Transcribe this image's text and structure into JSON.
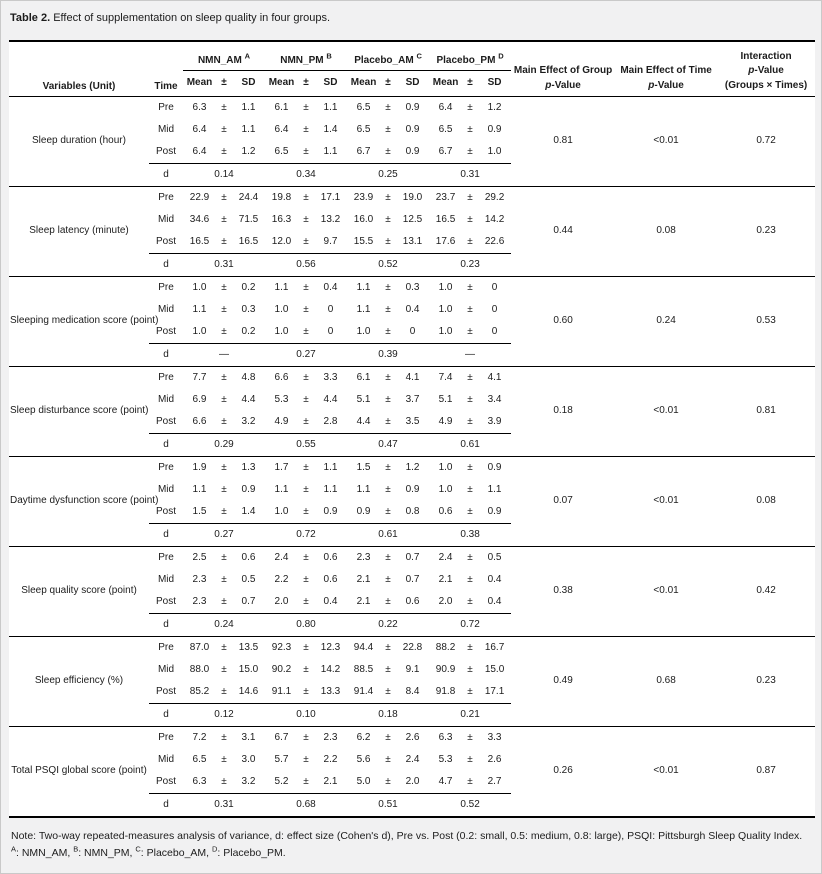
{
  "title": {
    "label": "Table 2.",
    "caption": " Effect of supplementation on sleep quality in four groups."
  },
  "header": {
    "variables": "Variables (Unit)",
    "time": "Time",
    "groups": [
      {
        "name": "NMN_AM",
        "sup": "A"
      },
      {
        "name": "NMN_PM",
        "sup": "B"
      },
      {
        "name": "Placebo_AM",
        "sup": "C"
      },
      {
        "name": "Placebo_PM",
        "sup": "D"
      }
    ],
    "sub": {
      "mean": "Mean",
      "pm": "±",
      "sd": "SD"
    },
    "p_group_title": "Main Effect of Group",
    "p_time_title": "Main Effect of Time",
    "interaction_title": "Interaction",
    "p_char": "p",
    "p_suffix": "-Value",
    "interaction_scope": "(Groups × Times)",
    "d_label": "d"
  },
  "rows": [
    {
      "variable": "Sleep duration (hour)",
      "measurements": [
        {
          "time": "Pre",
          "values": [
            [
              "6.3",
              "1.1"
            ],
            [
              "6.1",
              "1.1"
            ],
            [
              "6.5",
              "0.9"
            ],
            [
              "6.4",
              "1.2"
            ]
          ]
        },
        {
          "time": "Mid",
          "values": [
            [
              "6.4",
              "1.1"
            ],
            [
              "6.4",
              "1.4"
            ],
            [
              "6.5",
              "0.9"
            ],
            [
              "6.5",
              "0.9"
            ]
          ]
        },
        {
          "time": "Post",
          "values": [
            [
              "6.4",
              "1.2"
            ],
            [
              "6.5",
              "1.1"
            ],
            [
              "6.7",
              "0.9"
            ],
            [
              "6.7",
              "1.0"
            ]
          ]
        }
      ],
      "d": [
        "0.14",
        "0.34",
        "0.25",
        "0.31"
      ],
      "p_group": "0.81",
      "p_time": "<0.01",
      "p_interaction": "0.72"
    },
    {
      "variable": "Sleep latency (minute)",
      "measurements": [
        {
          "time": "Pre",
          "values": [
            [
              "22.9",
              "24.4"
            ],
            [
              "19.8",
              "17.1"
            ],
            [
              "23.9",
              "19.0"
            ],
            [
              "23.7",
              "29.2"
            ]
          ]
        },
        {
          "time": "Mid",
          "values": [
            [
              "34.6",
              "71.5"
            ],
            [
              "16.3",
              "13.2"
            ],
            [
              "16.0",
              "12.5"
            ],
            [
              "16.5",
              "14.2"
            ]
          ]
        },
        {
          "time": "Post",
          "values": [
            [
              "16.5",
              "16.5"
            ],
            [
              "12.0",
              "9.7"
            ],
            [
              "15.5",
              "13.1"
            ],
            [
              "17.6",
              "22.6"
            ]
          ]
        }
      ],
      "d": [
        "0.31",
        "0.56",
        "0.52",
        "0.23"
      ],
      "p_group": "0.44",
      "p_time": "0.08",
      "p_interaction": "0.23"
    },
    {
      "variable": "Sleeping medication score (point)",
      "measurements": [
        {
          "time": "Pre",
          "values": [
            [
              "1.0",
              "0.2"
            ],
            [
              "1.1",
              "0.4"
            ],
            [
              "1.1",
              "0.3"
            ],
            [
              "1.0",
              "0"
            ]
          ]
        },
        {
          "time": "Mid",
          "values": [
            [
              "1.1",
              "0.3"
            ],
            [
              "1.0",
              "0"
            ],
            [
              "1.1",
              "0.4"
            ],
            [
              "1.0",
              "0"
            ]
          ]
        },
        {
          "time": "Post",
          "values": [
            [
              "1.0",
              "0.2"
            ],
            [
              "1.0",
              "0"
            ],
            [
              "1.0",
              "0"
            ],
            [
              "1.0",
              "0"
            ]
          ]
        }
      ],
      "d": [
        "—",
        "0.27",
        "0.39",
        "—"
      ],
      "p_group": "0.60",
      "p_time": "0.24",
      "p_interaction": "0.53"
    },
    {
      "variable": "Sleep disturbance score (point)",
      "measurements": [
        {
          "time": "Pre",
          "values": [
            [
              "7.7",
              "4.8"
            ],
            [
              "6.6",
              "3.3"
            ],
            [
              "6.1",
              "4.1"
            ],
            [
              "7.4",
              "4.1"
            ]
          ]
        },
        {
          "time": "Mid",
          "values": [
            [
              "6.9",
              "4.4"
            ],
            [
              "5.3",
              "4.4"
            ],
            [
              "5.1",
              "3.7"
            ],
            [
              "5.1",
              "3.4"
            ]
          ]
        },
        {
          "time": "Post",
          "values": [
            [
              "6.6",
              "3.2"
            ],
            [
              "4.9",
              "2.8"
            ],
            [
              "4.4",
              "3.5"
            ],
            [
              "4.9",
              "3.9"
            ]
          ]
        }
      ],
      "d": [
        "0.29",
        "0.55",
        "0.47",
        "0.61"
      ],
      "p_group": "0.18",
      "p_time": "<0.01",
      "p_interaction": "0.81"
    },
    {
      "variable": "Daytime dysfunction score (point)",
      "measurements": [
        {
          "time": "Pre",
          "values": [
            [
              "1.9",
              "1.3"
            ],
            [
              "1.7",
              "1.1"
            ],
            [
              "1.5",
              "1.2"
            ],
            [
              "1.0",
              "0.9"
            ]
          ]
        },
        {
          "time": "Mid",
          "values": [
            [
              "1.1",
              "0.9"
            ],
            [
              "1.1",
              "1.1"
            ],
            [
              "1.1",
              "0.9"
            ],
            [
              "1.0",
              "1.1"
            ]
          ]
        },
        {
          "time": "Post",
          "values": [
            [
              "1.5",
              "1.4"
            ],
            [
              "1.0",
              "0.9"
            ],
            [
              "0.9",
              "0.8"
            ],
            [
              "0.6",
              "0.9"
            ]
          ]
        }
      ],
      "d": [
        "0.27",
        "0.72",
        "0.61",
        "0.38"
      ],
      "p_group": "0.07",
      "p_time": "<0.01",
      "p_interaction": "0.08"
    },
    {
      "variable": "Sleep quality score (point)",
      "measurements": [
        {
          "time": "Pre",
          "values": [
            [
              "2.5",
              "0.6"
            ],
            [
              "2.4",
              "0.6"
            ],
            [
              "2.3",
              "0.7"
            ],
            [
              "2.4",
              "0.5"
            ]
          ]
        },
        {
          "time": "Mid",
          "values": [
            [
              "2.3",
              "0.5"
            ],
            [
              "2.2",
              "0.6"
            ],
            [
              "2.1",
              "0.7"
            ],
            [
              "2.1",
              "0.4"
            ]
          ]
        },
        {
          "time": "Post",
          "values": [
            [
              "2.3",
              "0.7"
            ],
            [
              "2.0",
              "0.4"
            ],
            [
              "2.1",
              "0.6"
            ],
            [
              "2.0",
              "0.4"
            ]
          ]
        }
      ],
      "d": [
        "0.24",
        "0.80",
        "0.22",
        "0.72"
      ],
      "p_group": "0.38",
      "p_time": "<0.01",
      "p_interaction": "0.42"
    },
    {
      "variable": "Sleep efficiency (%)",
      "measurements": [
        {
          "time": "Pre",
          "values": [
            [
              "87.0",
              "13.5"
            ],
            [
              "92.3",
              "12.3"
            ],
            [
              "94.4",
              "22.8"
            ],
            [
              "88.2",
              "16.7"
            ]
          ]
        },
        {
          "time": "Mid",
          "values": [
            [
              "88.0",
              "15.0"
            ],
            [
              "90.2",
              "14.2"
            ],
            [
              "88.5",
              "9.1"
            ],
            [
              "90.9",
              "15.0"
            ]
          ]
        },
        {
          "time": "Post",
          "values": [
            [
              "85.2",
              "14.6"
            ],
            [
              "91.1",
              "13.3"
            ],
            [
              "91.4",
              "8.4"
            ],
            [
              "91.8",
              "17.1"
            ]
          ]
        }
      ],
      "d": [
        "0.12",
        "0.10",
        "0.18",
        "0.21"
      ],
      "p_group": "0.49",
      "p_time": "0.68",
      "p_interaction": "0.23"
    },
    {
      "variable": "Total PSQI global score (point)",
      "measurements": [
        {
          "time": "Pre",
          "values": [
            [
              "7.2",
              "3.1"
            ],
            [
              "6.7",
              "2.3"
            ],
            [
              "6.2",
              "2.6"
            ],
            [
              "6.3",
              "3.3"
            ]
          ]
        },
        {
          "time": "Mid",
          "values": [
            [
              "6.5",
              "3.0"
            ],
            [
              "5.7",
              "2.2"
            ],
            [
              "5.6",
              "2.4"
            ],
            [
              "5.3",
              "2.6"
            ]
          ]
        },
        {
          "time": "Post",
          "values": [
            [
              "6.3",
              "3.2"
            ],
            [
              "5.2",
              "2.1"
            ],
            [
              "5.0",
              "2.0"
            ],
            [
              "4.7",
              "2.7"
            ]
          ]
        }
      ],
      "d": [
        "0.31",
        "0.68",
        "0.51",
        "0.52"
      ],
      "p_group": "0.26",
      "p_time": "<0.01",
      "p_interaction": "0.87"
    }
  ],
  "note": {
    "segments": [
      {
        "text": "Note: Two-way repeated-measures analysis of variance, d: effect size (Cohen's d), Pre vs. Post (0.2: small, 0.5: medium, 0.8: large), PSQI: Pittsburgh Sleep Quality Index. "
      },
      {
        "sup": "A"
      },
      {
        "text": ": NMN_AM, "
      },
      {
        "sup": "B"
      },
      {
        "text": ": NMN_PM, "
      },
      {
        "sup": "C"
      },
      {
        "text": ": Placebo_AM, "
      },
      {
        "sup": "D"
      },
      {
        "text": ": Placebo_PM."
      }
    ]
  }
}
